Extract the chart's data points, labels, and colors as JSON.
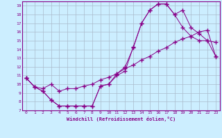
{
  "xlabel": "Windchill (Refroidissement éolien,°C)",
  "bg_color": "#cceeff",
  "line_color": "#880088",
  "grid_color": "#aabbcc",
  "xlim": [
    -0.5,
    23.5
  ],
  "ylim": [
    7,
    19.5
  ],
  "xticks": [
    0,
    1,
    2,
    3,
    4,
    5,
    6,
    7,
    8,
    9,
    10,
    11,
    12,
    13,
    14,
    15,
    16,
    17,
    18,
    19,
    20,
    21,
    22,
    23
  ],
  "yticks": [
    7,
    8,
    9,
    10,
    11,
    12,
    13,
    14,
    15,
    16,
    17,
    18,
    19
  ],
  "line1_x": [
    0,
    1,
    2,
    3,
    4,
    5,
    6,
    7,
    8,
    9,
    10,
    11,
    12,
    13,
    14,
    15,
    16,
    17,
    18,
    19,
    20,
    21,
    22,
    23
  ],
  "line1_y": [
    10.7,
    9.7,
    9.2,
    8.2,
    7.5,
    7.5,
    7.5,
    7.5,
    7.5,
    9.8,
    10.0,
    11.2,
    12.0,
    14.2,
    17.0,
    18.5,
    19.2,
    19.2,
    18.0,
    18.5,
    16.5,
    15.8,
    15.0,
    14.8
  ],
  "line2_x": [
    0,
    1,
    2,
    3,
    4,
    5,
    6,
    7,
    8,
    9,
    10,
    11,
    12,
    13,
    14,
    15,
    16,
    17,
    18,
    19,
    20,
    21,
    22,
    23
  ],
  "line2_y": [
    10.7,
    9.7,
    9.2,
    8.2,
    7.5,
    7.5,
    7.5,
    7.5,
    7.5,
    9.8,
    10.0,
    11.0,
    11.5,
    14.3,
    17.0,
    18.5,
    19.2,
    19.2,
    18.0,
    16.5,
    15.5,
    15.0,
    15.0,
    13.2
  ],
  "line3_x": [
    0,
    1,
    2,
    3,
    4,
    5,
    6,
    7,
    8,
    9,
    10,
    11,
    12,
    13,
    14,
    15,
    16,
    17,
    18,
    19,
    20,
    21,
    22,
    23
  ],
  "line3_y": [
    10.7,
    9.7,
    9.5,
    10.0,
    9.2,
    9.5,
    9.5,
    9.8,
    10.0,
    10.5,
    10.8,
    11.2,
    11.8,
    12.2,
    12.8,
    13.2,
    13.8,
    14.2,
    14.8,
    15.2,
    15.5,
    16.0,
    16.2,
    13.2
  ]
}
